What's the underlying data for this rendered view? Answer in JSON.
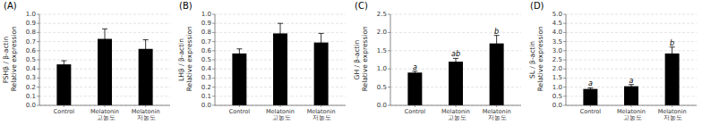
{
  "chart_data": [
    {
      "type": "bar",
      "title": "(A)",
      "ylabel": "FSHβ / β-actin\nRelative expression",
      "categories": [
        "Control",
        "Melatonin 고농도",
        "Melatonin 저농도"
      ],
      "values": [
        0.45,
        0.73,
        0.62
      ],
      "errors": [
        0.04,
        0.11,
        0.1
      ],
      "color": "#000000",
      "ylim": [
        0,
        1.0
      ],
      "yticks": [
        {
          "value": 0,
          "label": "0.0"
        },
        0.1,
        0.2,
        0.3,
        0.4,
        0.5,
        0.6,
        0.7,
        0.8,
        0.9,
        {
          "value": 1.0,
          "label": "1.0"
        }
      ],
      "grid": true
    },
    {
      "type": "bar",
      "title": "(B)",
      "ylabel": "LHβ / β-actin\nRelative expression",
      "categories": [
        "Control",
        "Melatonin 고농도",
        "Melatonin 저농도"
      ],
      "values": [
        0.57,
        0.79,
        0.69
      ],
      "errors": [
        0.05,
        0.11,
        0.1
      ],
      "color": "#000000",
      "ylim": [
        0,
        1.0
      ],
      "yticks": [
        {
          "value": 0,
          "label": "0.0"
        },
        0.1,
        0.2,
        0.3,
        0.4,
        0.5,
        0.6,
        0.7,
        0.8,
        0.9,
        {
          "value": 1.0,
          "label": "1.0"
        }
      ],
      "grid": true
    },
    {
      "type": "bar",
      "title": "(C)",
      "ylabel": "GH / β-actin\nRelative expression",
      "categories": [
        "Control",
        "Melatonin 고농도",
        "Melatonin 저농도"
      ],
      "values": [
        0.9,
        1.2,
        1.7
      ],
      "errors": [
        0.04,
        0.09,
        0.22
      ],
      "color": "#000000",
      "annotations": [
        "a",
        "ab",
        "b"
      ],
      "ylim": [
        0,
        2.5
      ],
      "yticks": [
        {
          "value": 0,
          "label": "0.0"
        },
        0.5,
        {
          "value": 1.0,
          "label": "1.0"
        },
        1.5,
        {
          "value": 2.0,
          "label": "2.0"
        },
        2.5
      ],
      "grid": true
    },
    {
      "type": "bar",
      "title": "(D)",
      "ylabel": "SL / β-actin\nRelative expression",
      "categories": [
        "Control",
        "Melatonin 고농도",
        "Melatonin 저농도"
      ],
      "values": [
        0.9,
        1.05,
        2.85
      ],
      "errors": [
        0.06,
        0.09,
        0.35
      ],
      "color": "#000000",
      "annotations": [
        "a",
        "a",
        "b"
      ],
      "ylim": [
        0,
        5.0
      ],
      "yticks": [
        {
          "value": 0,
          "label": "0.0"
        },
        0.5,
        {
          "value": 1.0,
          "label": "1.0"
        },
        1.5,
        {
          "value": 2.0,
          "label": "2.0"
        },
        2.5,
        {
          "value": 3.0,
          "label": "3.0"
        },
        3.5,
        {
          "value": 4.0,
          "label": "4.0"
        },
        4.5,
        {
          "value": 5.0,
          "label": "5.0"
        }
      ],
      "grid": true
    }
  ]
}
